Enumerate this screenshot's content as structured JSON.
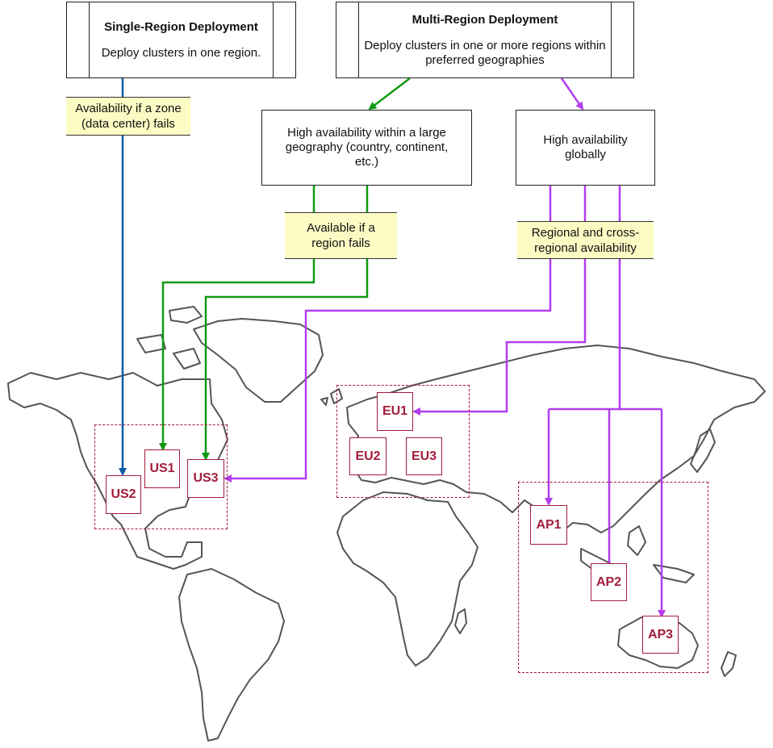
{
  "colors": {
    "single": "#0b5aa6",
    "multi_geo": "#119911",
    "multi_global": "#b43cf0",
    "node": "#a31c3a",
    "note_bg": "#fdfbc4",
    "land": "#555555"
  },
  "single": {
    "title": "Single-Region Deployment",
    "subtitle": "Deploy clusters in one region."
  },
  "multi": {
    "title": "Multi-Region Deployment",
    "subtitle": "Deploy clusters in one or more regions within preferred  geographies"
  },
  "geo_box": {
    "text": "High availability within a large geography (country, continent, etc.)"
  },
  "global_box": {
    "text": "High availability globally"
  },
  "notes": {
    "zone": "Availability if a zone (data center) fails",
    "region": "Available if a region fails",
    "cross": "Regional and cross-regional availability"
  },
  "nodes": {
    "us1": "US1",
    "us2": "US2",
    "us3": "US3",
    "eu1": "EU1",
    "eu2": "EU2",
    "eu3": "EU3",
    "ap1": "AP1",
    "ap2": "AP2",
    "ap3": "AP3"
  }
}
